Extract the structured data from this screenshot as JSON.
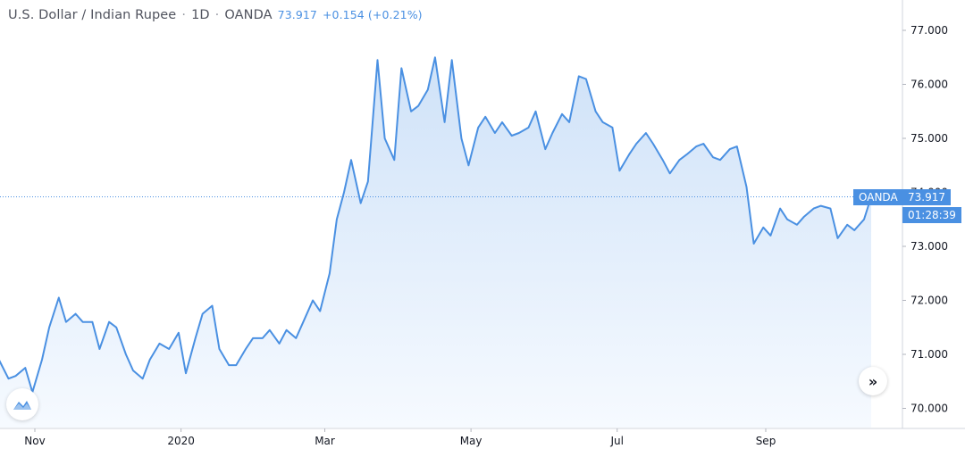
{
  "legend": {
    "symbol": "U.S. Dollar / Indian Rupee",
    "interval": "1D",
    "exchange": "OANDA",
    "last": "73.917",
    "change": "+0.154 (+0.21%)"
  },
  "price_tag": {
    "symbol": "OANDA",
    "last": "73.917",
    "countdown": "01:28:39"
  },
  "colors": {
    "line": "#4a90e2",
    "fill_top": "#cfe2f8",
    "fill_bottom": "#f6faff",
    "axis_text": "#131722",
    "tag_bg": "#4a90e2"
  },
  "icons": {
    "logo": "tradingview-logo-icon",
    "scroll": "scroll-to-realtime-icon"
  },
  "chart_data": {
    "type": "area",
    "title": "U.S. Dollar / Indian Rupee · 1D · OANDA",
    "xlabel": "",
    "ylabel": "",
    "ylim": [
      69.7,
      77.4
    ],
    "yticks": [
      "77.000",
      "76.000",
      "75.000",
      "74.000",
      "73.000",
      "72.000",
      "71.000",
      "70.000"
    ],
    "ytick_values": [
      77,
      76,
      75,
      74,
      73,
      72,
      71,
      70
    ],
    "xticks": [
      "Nov",
      "2020",
      "Mar",
      "May",
      "Jul",
      "Sep"
    ],
    "xtick_dates": [
      "2019-11-01",
      "2020-01-01",
      "2020-03-01",
      "2020-05-01",
      "2020-07-01",
      "2020-09-01"
    ],
    "xrange": [
      "2019-10-17",
      "2020-10-15"
    ],
    "last_value": 73.917,
    "grid": false,
    "legend": "top-left",
    "series": [
      {
        "x": [
          "2019-10-17",
          "2019-10-21",
          "2019-10-24",
          "2019-10-28",
          "2019-10-31",
          "2019-11-04",
          "2019-11-07",
          "2019-11-11",
          "2019-11-14",
          "2019-11-18",
          "2019-11-21",
          "2019-11-25",
          "2019-11-28",
          "2019-12-02",
          "2019-12-05",
          "2019-12-09",
          "2019-12-12",
          "2019-12-16",
          "2019-12-19",
          "2019-12-23",
          "2019-12-27",
          "2019-12-31",
          "2020-01-03",
          "2020-01-07",
          "2020-01-10",
          "2020-01-14",
          "2020-01-17",
          "2020-01-21",
          "2020-01-24",
          "2020-01-28",
          "2020-01-31",
          "2020-02-04",
          "2020-02-07",
          "2020-02-11",
          "2020-02-14",
          "2020-02-18",
          "2020-02-21",
          "2020-02-25",
          "2020-02-28",
          "2020-03-03",
          "2020-03-06",
          "2020-03-09",
          "2020-03-12",
          "2020-03-16",
          "2020-03-19",
          "2020-03-23",
          "2020-03-26",
          "2020-03-30",
          "2020-04-02",
          "2020-04-06",
          "2020-04-09",
          "2020-04-13",
          "2020-04-16",
          "2020-04-20",
          "2020-04-23",
          "2020-04-27",
          "2020-04-30",
          "2020-05-04",
          "2020-05-07",
          "2020-05-11",
          "2020-05-14",
          "2020-05-18",
          "2020-05-21",
          "2020-05-25",
          "2020-05-28",
          "2020-06-01",
          "2020-06-04",
          "2020-06-08",
          "2020-06-11",
          "2020-06-15",
          "2020-06-18",
          "2020-06-22",
          "2020-06-25",
          "2020-06-29",
          "2020-07-02",
          "2020-07-06",
          "2020-07-09",
          "2020-07-13",
          "2020-07-16",
          "2020-07-20",
          "2020-07-23",
          "2020-07-27",
          "2020-07-30",
          "2020-08-03",
          "2020-08-06",
          "2020-08-10",
          "2020-08-13",
          "2020-08-17",
          "2020-08-20",
          "2020-08-24",
          "2020-08-27",
          "2020-08-31",
          "2020-09-03",
          "2020-09-07",
          "2020-09-10",
          "2020-09-14",
          "2020-09-17",
          "2020-09-21",
          "2020-09-24",
          "2020-09-28",
          "2020-10-01",
          "2020-10-05",
          "2020-10-08",
          "2020-10-12",
          "2020-10-15"
        ],
        "y": [
          70.9,
          70.55,
          70.6,
          70.75,
          70.3,
          70.9,
          71.5,
          72.05,
          71.6,
          71.75,
          71.6,
          71.6,
          71.1,
          71.6,
          71.5,
          71.0,
          70.7,
          70.55,
          70.9,
          71.2,
          71.1,
          71.4,
          70.65,
          71.3,
          71.75,
          71.9,
          71.1,
          70.8,
          70.8,
          71.1,
          71.3,
          71.3,
          71.45,
          71.2,
          71.45,
          71.3,
          71.6,
          72.0,
          71.8,
          72.5,
          73.5,
          74.0,
          74.6,
          73.8,
          74.2,
          76.45,
          75.0,
          74.6,
          76.3,
          75.5,
          75.6,
          75.9,
          76.5,
          75.3,
          76.45,
          75.0,
          74.5,
          75.2,
          75.4,
          75.1,
          75.3,
          75.05,
          75.1,
          75.2,
          75.5,
          74.8,
          75.1,
          75.45,
          75.3,
          76.15,
          76.1,
          75.5,
          75.3,
          75.2,
          74.4,
          74.7,
          74.9,
          75.1,
          74.9,
          74.6,
          74.35,
          74.6,
          74.7,
          74.85,
          74.9,
          74.65,
          74.6,
          74.8,
          74.85,
          74.1,
          73.05,
          73.35,
          73.2,
          73.7,
          73.5,
          73.4,
          73.55,
          73.7,
          73.75,
          73.7,
          73.15,
          73.4,
          73.3,
          73.5,
          73.917
        ]
      }
    ]
  }
}
